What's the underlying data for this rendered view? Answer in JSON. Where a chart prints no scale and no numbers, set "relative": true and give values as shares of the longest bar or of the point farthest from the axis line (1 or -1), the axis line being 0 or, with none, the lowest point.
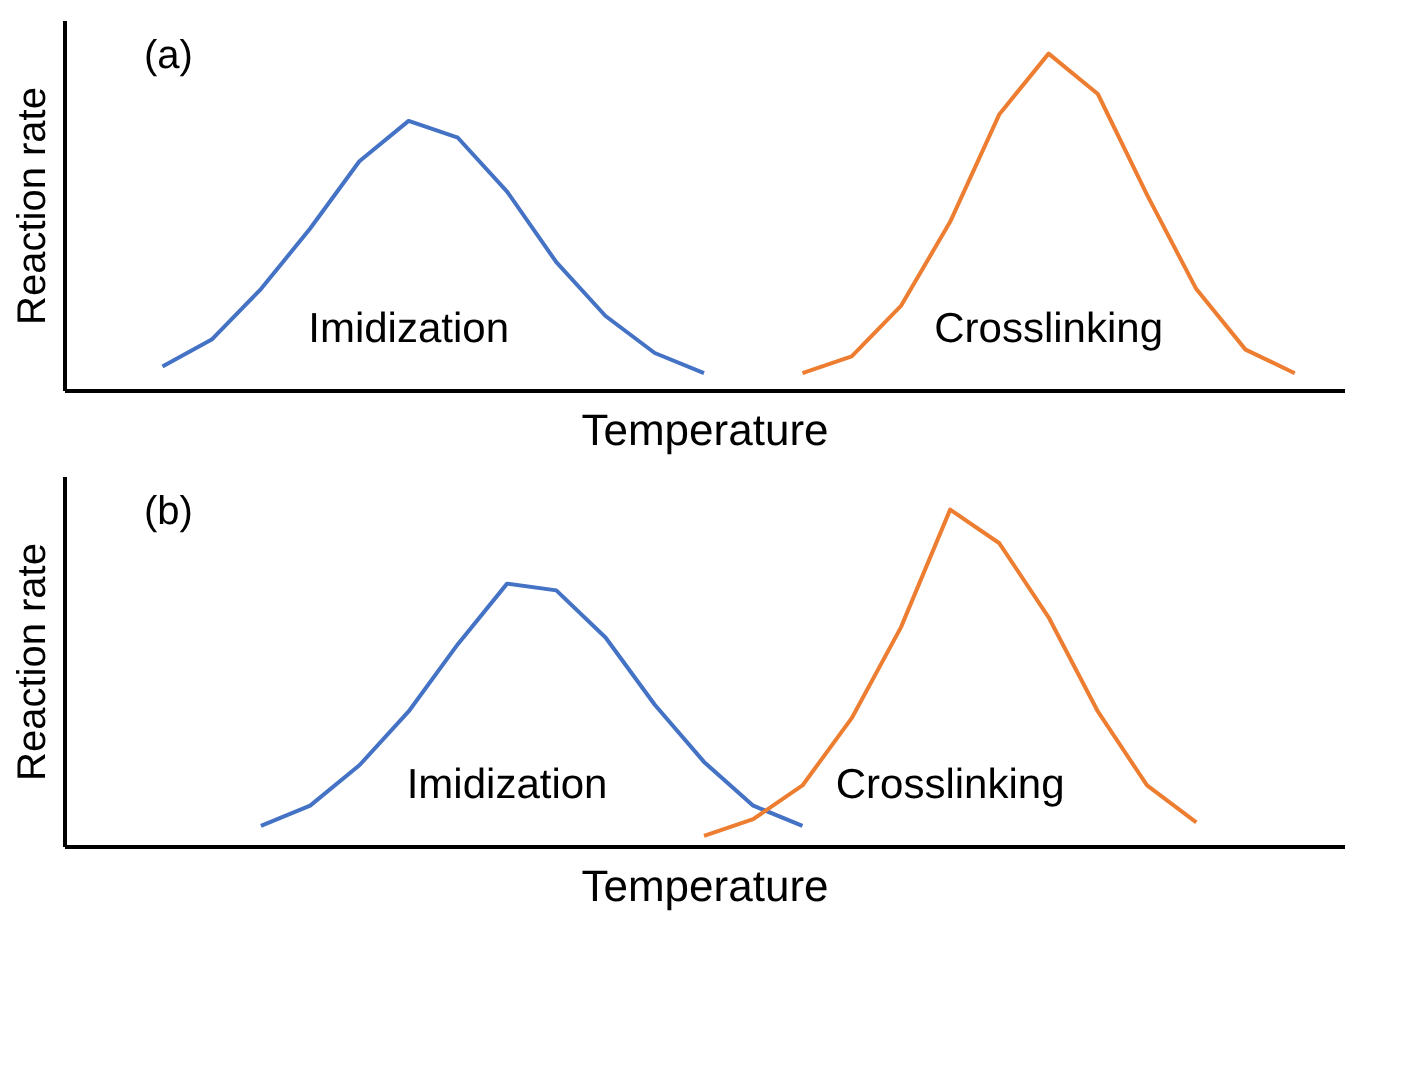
{
  "chart_data": [
    {
      "type": "line",
      "title": "(a)",
      "xlabel": "Temperature",
      "ylabel": "Reaction rate",
      "relative": true,
      "tick_labels": false,
      "grid": false,
      "legend": false,
      "marker": "none",
      "line_style": "solid",
      "categories": [
        null,
        null,
        null,
        null,
        null,
        null,
        null,
        null,
        null,
        null,
        null,
        null,
        null,
        null,
        null,
        null,
        null,
        null,
        null,
        null,
        null,
        null,
        null,
        null,
        null,
        null,
        null
      ],
      "series": [
        {
          "name": "Imidization",
          "color": "#4472c4",
          "values": [
            null,
            null,
            0.07,
            0.15,
            0.3,
            0.48,
            0.68,
            0.8,
            0.75,
            0.59,
            0.38,
            0.22,
            0.11,
            0.05,
            null,
            null,
            null,
            null,
            null,
            null,
            null,
            null,
            null,
            null,
            null,
            null,
            null
          ]
        },
        {
          "name": "Crosslinking",
          "color": "#ed7d31",
          "values": [
            null,
            null,
            null,
            null,
            null,
            null,
            null,
            null,
            null,
            null,
            null,
            null,
            null,
            null,
            null,
            0.05,
            0.1,
            0.25,
            0.5,
            0.82,
            1.0,
            0.88,
            0.58,
            0.3,
            0.12,
            0.05,
            null
          ]
        }
      ]
    },
    {
      "type": "line",
      "title": "(b)",
      "xlabel": "Temperature",
      "ylabel": "Reaction rate",
      "relative": true,
      "tick_labels": false,
      "grid": false,
      "legend": false,
      "marker": "none",
      "line_style": "solid",
      "categories": [
        null,
        null,
        null,
        null,
        null,
        null,
        null,
        null,
        null,
        null,
        null,
        null,
        null,
        null,
        null,
        null,
        null,
        null,
        null,
        null,
        null,
        null,
        null,
        null,
        null,
        null,
        null
      ],
      "series": [
        {
          "name": "Imidization",
          "color": "#4472c4",
          "values": [
            null,
            null,
            null,
            null,
            0.06,
            0.12,
            0.24,
            0.4,
            0.6,
            0.78,
            0.76,
            0.62,
            0.42,
            0.25,
            0.12,
            0.06,
            null,
            null,
            null,
            null,
            null,
            null,
            null,
            null,
            null,
            null,
            null
          ]
        },
        {
          "name": "Crosslinking",
          "color": "#ed7d31",
          "values": [
            null,
            null,
            null,
            null,
            null,
            null,
            null,
            null,
            null,
            null,
            null,
            null,
            null,
            0.03,
            0.08,
            0.18,
            0.38,
            0.65,
            1.0,
            0.9,
            0.68,
            0.4,
            0.18,
            0.07,
            null,
            null,
            null
          ]
        }
      ]
    }
  ]
}
